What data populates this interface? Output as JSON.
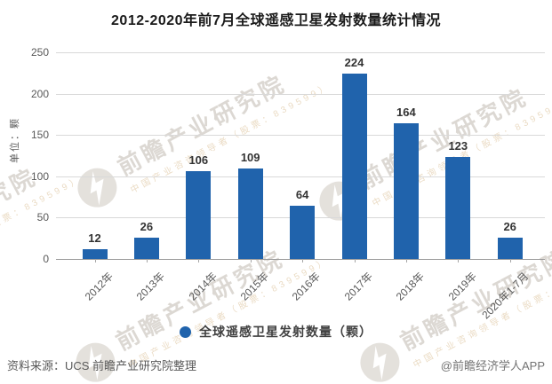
{
  "title": "2012-2020年前7月全球遥感卫星发射数量统计情况",
  "chart_data": {
    "type": "bar",
    "categories": [
      "2012年",
      "2013年",
      "2014年",
      "2015年",
      "2016年",
      "2017年",
      "2018年",
      "2019年",
      "2020年1-7月"
    ],
    "values": [
      12,
      26,
      106,
      109,
      64,
      224,
      164,
      123,
      26
    ],
    "title": "2012-2020年前7月全球遥感卫星发射数量统计情况",
    "xlabel": "",
    "ylabel": "单位：颗",
    "ylim": [
      0,
      250
    ],
    "yticks": [
      0,
      50,
      100,
      150,
      200,
      250
    ],
    "grid": true,
    "bar_color": "#2063AC",
    "legend_position": "bottom",
    "legend_entries": [
      "全球遥感卫星发射数量（颗）"
    ]
  },
  "y_axis": {
    "unit_label": "单位：颗"
  },
  "legend": {
    "label": "全球遥感卫星发射数量（颗）",
    "marker_color": "#2063AC"
  },
  "footer": {
    "source": "资料来源：UCS 前瞻产业研究院整理",
    "credit": "@前瞻经济学人APP"
  },
  "watermark": {
    "logo": "qianzhan-bolt-icon",
    "brand_large": "前瞻产业研究院",
    "brand_small": "中国产业咨询领导者（股票：839599）"
  },
  "colors": {
    "bar": "#2063AC",
    "grid": "#d9d9d9",
    "baseline": "#999999",
    "axis_text": "#595959",
    "value_text": "#333333"
  }
}
